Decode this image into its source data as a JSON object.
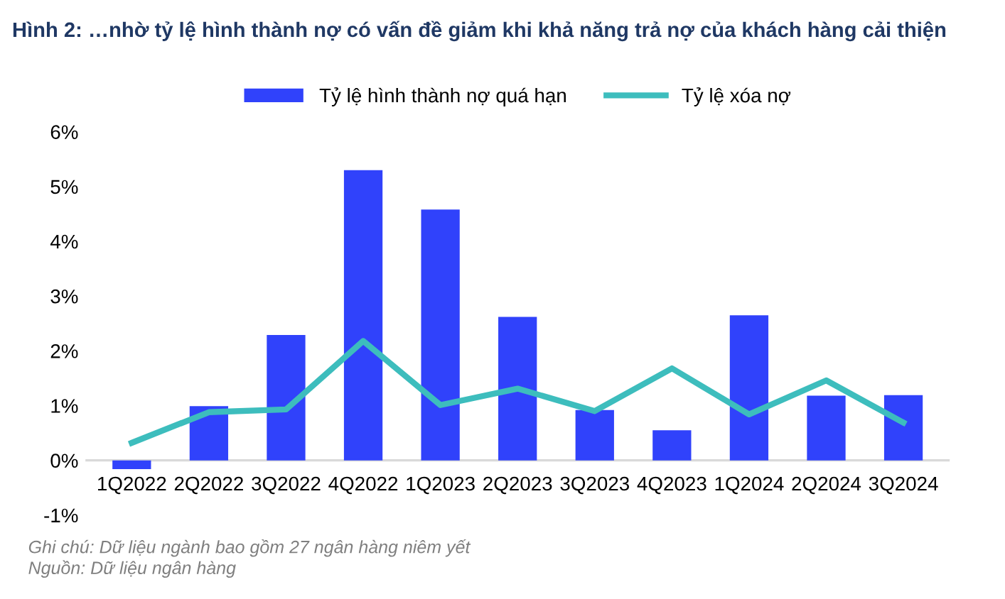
{
  "chart_data": {
    "type": "bar",
    "title": "Hình 2: …nhờ tỷ lệ hình thành nợ có vấn đề giảm khi khả năng trả nợ của khách hàng cải thiện",
    "categories": [
      "1Q2022",
      "2Q2022",
      "3Q2022",
      "4Q2022",
      "1Q2023",
      "2Q2023",
      "3Q2023",
      "4Q2023",
      "1Q2024",
      "2Q2024",
      "3Q2024"
    ],
    "series": [
      {
        "name": "Tỷ lệ hình thành nợ quá hạn",
        "color": "#3042fb",
        "values": [
          -0.16,
          0.99,
          2.29,
          5.3,
          4.58,
          2.62,
          0.92,
          0.55,
          2.65,
          1.18,
          1.19
        ]
      },
      {
        "name": "Tỷ lệ xóa nợ",
        "type": "line",
        "color": "#3dbdbd",
        "values": [
          0.32,
          0.88,
          0.93,
          2.18,
          1.01,
          1.31,
          0.9,
          1.68,
          0.84,
          1.46,
          0.69
        ]
      }
    ],
    "ylim": [
      -1,
      6
    ],
    "yticks": [
      {
        "value": -1,
        "label": "-1%"
      },
      {
        "value": 0,
        "label": "0%"
      },
      {
        "value": 1,
        "label": "1%"
      },
      {
        "value": 2,
        "label": "2%"
      },
      {
        "value": 3,
        "label": "3%"
      },
      {
        "value": 4,
        "label": "4%"
      },
      {
        "value": 5,
        "label": "5%"
      },
      {
        "value": 6,
        "label": "6%"
      }
    ],
    "grid": false,
    "legend": "top",
    "marker": "none",
    "line_style": "solid",
    "annotations": [
      "Ghi chú: Dữ liệu ngành bao gồm 27 ngân hàng niêm yết",
      "Nguồn: Dữ liệu ngân hàng"
    ]
  }
}
